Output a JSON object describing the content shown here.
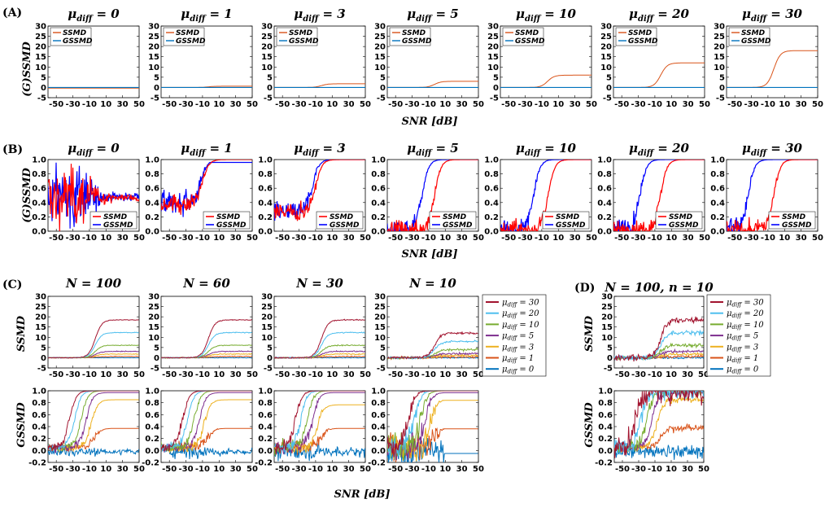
{
  "figure": {
    "panel_labels": [
      "(A)",
      "(B)",
      "(C)",
      "(D)"
    ],
    "snr_xlabel": "SNR [dB]",
    "row_a_ylabel": "(G)SSMD",
    "row_b_ylabel": "(G)SSMD",
    "row_c_ylabel_top": "SSMD",
    "row_c_ylabel_bottom": "GSSMD",
    "legend_ab": [
      "SSMD",
      "GSSMD"
    ],
    "colors": {
      "ssmd_a": "#d95319",
      "gssmd_a": "#0072bd",
      "ssmd_b": "#ff0000",
      "gssmd_b": "#0000ff",
      "mu30": "#a2142f",
      "mu20": "#4dbeee",
      "mu10": "#77ac30",
      "mu5": "#7e2f8e",
      "mu3": "#edb120",
      "mu1": "#d95319",
      "mu0": "#0072bd"
    }
  },
  "chart_data": [
    {
      "panel": "A",
      "type": "line",
      "titles": [
        "μdiff = 0",
        "μdiff = 1",
        "μdiff = 3",
        "μdiff = 5",
        "μdiff = 10",
        "μdiff = 20",
        "μdiff = 30"
      ],
      "mu": [
        0,
        1,
        3,
        5,
        10,
        20,
        30
      ],
      "x_range": [
        -60,
        50
      ],
      "y_range": [
        -5,
        30
      ],
      "x_ticks": [
        -50,
        -30,
        -10,
        10,
        30,
        50
      ],
      "y_ticks": [
        -5,
        0,
        5,
        10,
        15,
        20,
        25,
        30
      ],
      "series": [
        {
          "name": "SSMD",
          "plateau": "≈0.6·μdiff"
        },
        {
          "name": "GSSMD",
          "value": 0
        }
      ],
      "xlabel": "SNR [dB]",
      "ylabel": "(G)SSMD"
    },
    {
      "panel": "B",
      "type": "line",
      "titles": [
        "μdiff = 0",
        "μdiff = 1",
        "μdiff = 3",
        "μdiff = 5",
        "μdiff = 10",
        "μdiff = 20",
        "μdiff = 30"
      ],
      "mu": [
        0,
        1,
        3,
        5,
        10,
        20,
        30
      ],
      "x_range": [
        -60,
        50
      ],
      "y_range": [
        0,
        1
      ],
      "x_ticks": [
        -50,
        -30,
        -10,
        10,
        30,
        50
      ],
      "y_ticks": [
        0.0,
        0.2,
        0.4,
        0.6,
        0.8,
        1.0
      ],
      "series": [
        {
          "name": "SSMD"
        },
        {
          "name": "GSSMD"
        }
      ],
      "xlabel": "SNR [dB]",
      "ylabel": "(G)SSMD"
    },
    {
      "panel": "C",
      "type": "line",
      "titles": [
        "N = 100",
        "N = 60",
        "N = 30",
        "N = 10"
      ],
      "N": [
        100,
        60,
        30,
        10
      ],
      "x_range": [
        -60,
        50
      ],
      "ssmd_y_range": [
        -5,
        30
      ],
      "gssmd_y_range": [
        -0.2,
        1.0
      ],
      "x_ticks": [
        -50,
        -30,
        -10,
        10,
        30,
        50
      ],
      "ssmd_y_ticks": [
        -5,
        0,
        5,
        10,
        15,
        20,
        25,
        30
      ],
      "gssmd_y_ticks": [
        -0.2,
        0.0,
        0.2,
        0.4,
        0.6,
        0.8,
        1.0
      ],
      "series": [
        {
          "name": "μdiff = 30",
          "mu": 30,
          "ssmd_plateau": 18.5,
          "gssmd_plateau": 1.0
        },
        {
          "name": "μdiff = 20",
          "mu": 20,
          "ssmd_plateau": 12.3,
          "gssmd_plateau": 1.0
        },
        {
          "name": "μdiff = 10",
          "mu": 10,
          "ssmd_plateau": 6.1,
          "gssmd_plateau": 1.0
        },
        {
          "name": "μdiff = 5",
          "mu": 5,
          "ssmd_plateau": 3.1,
          "gssmd_plateau": 0.97
        },
        {
          "name": "μdiff = 3",
          "mu": 3,
          "ssmd_plateau": 1.8,
          "gssmd_plateau": 0.85
        },
        {
          "name": "μdiff = 1",
          "mu": 1,
          "ssmd_plateau": 0.6,
          "gssmd_plateau": 0.37
        },
        {
          "name": "μdiff = 0",
          "mu": 0,
          "ssmd_plateau": 0.0,
          "gssmd_plateau": -0.02
        }
      ]
    },
    {
      "panel": "D",
      "type": "line",
      "titles": [
        "N = 100, n = 10"
      ],
      "x_range": [
        -60,
        50
      ],
      "ssmd_y_range": [
        -5,
        30
      ],
      "gssmd_y_range": [
        -0.2,
        1.0
      ],
      "x_ticks": [
        -50,
        -30,
        -10,
        10,
        30,
        50
      ],
      "ssmd_y_ticks": [
        -5,
        0,
        5,
        10,
        15,
        20,
        25,
        30
      ],
      "gssmd_y_ticks": [
        -0.2,
        0.0,
        0.2,
        0.4,
        0.6,
        0.8,
        1.0
      ],
      "series": [
        {
          "name": "μdiff = 30"
        },
        {
          "name": "μdiff = 20"
        },
        {
          "name": "μdiff = 10"
        },
        {
          "name": "μdiff = 5"
        },
        {
          "name": "μdiff = 3"
        },
        {
          "name": "μdiff = 1"
        },
        {
          "name": "μdiff = 0"
        }
      ]
    }
  ]
}
